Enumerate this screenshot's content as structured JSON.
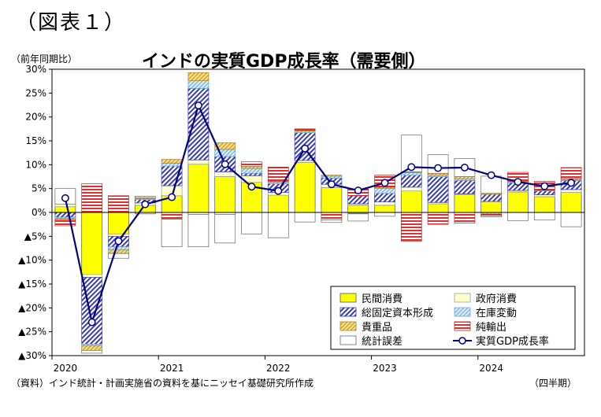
{
  "figure_label": "（図表１）",
  "footer": {
    "source": "（資料）インド統計・計画実施省の資料を基にニッセイ基礎研究所作成",
    "x_unit": "（四半期）"
  },
  "chart_data": {
    "type": "bar",
    "stacked": true,
    "title": "インドの実質GDP成長率（需要側）",
    "ylabel": "（前年同期比）",
    "ylim": [
      -30,
      30
    ],
    "yticks": [
      {
        "v": 30,
        "label": "30%"
      },
      {
        "v": 25,
        "label": "25%"
      },
      {
        "v": 20,
        "label": "20%"
      },
      {
        "v": 15,
        "label": "15%"
      },
      {
        "v": 10,
        "label": "10%"
      },
      {
        "v": 5,
        "label": "5%"
      },
      {
        "v": 0,
        "label": "0%"
      },
      {
        "v": -5,
        "label": "▲5%"
      },
      {
        "v": -10,
        "label": "▲10%"
      },
      {
        "v": -15,
        "label": "▲15%"
      },
      {
        "v": -20,
        "label": "▲20%"
      },
      {
        "v": -25,
        "label": "▲25%"
      },
      {
        "v": -30,
        "label": "▲30%"
      }
    ],
    "year_labels": [
      {
        "label": "2020",
        "index": 0
      },
      {
        "label": "2021",
        "index": 4
      },
      {
        "label": "2022",
        "index": 8
      },
      {
        "label": "2023",
        "index": 12
      },
      {
        "label": "2024",
        "index": 16
      }
    ],
    "n_quarters": 20,
    "legend_position": "bottom-right",
    "series": [
      {
        "name": "民間消費",
        "color": "#ffff00",
        "pattern": "solid",
        "values": [
          1.2,
          -13.0,
          -4.5,
          1.5,
          3.5,
          10.1,
          7.5,
          6.3,
          3.6,
          10.5,
          5.2,
          1.5,
          1.5,
          4.5,
          1.8,
          3.8,
          2.3,
          4.3,
          3.3,
          4.2
        ]
      },
      {
        "name": "政府消費",
        "color": "#ffffcc",
        "pattern": "light",
        "values": [
          0.5,
          -0.6,
          -0.5,
          0.5,
          2.1,
          0.9,
          1.0,
          1.4,
          0.6,
          0.4,
          0.7,
          0.3,
          0.7,
          0.8,
          0.3,
          0.1,
          -0.2,
          0.3,
          0.4,
          0.6
        ]
      },
      {
        "name": "総固定資本形成",
        "color": "#4040b0",
        "pattern": "diag",
        "values": [
          -1.0,
          -14.0,
          -2.2,
          0.7,
          4.1,
          15.0,
          3.2,
          0.5,
          1.8,
          5.8,
          1.3,
          1.7,
          1.8,
          2.5,
          5.4,
          2.8,
          1.5,
          1.6,
          0.8,
          1.9
        ]
      },
      {
        "name": "在庫変動",
        "color": "#aad4f0",
        "pattern": "light-diag",
        "values": [
          -0.3,
          -0.3,
          -0.6,
          0.2,
          0.6,
          1.6,
          1.5,
          1.0,
          0.3,
          0.3,
          0.4,
          -0.2,
          1.0,
          0.5,
          0.3,
          0.3,
          -0.2,
          0.2,
          0.1,
          0.2
        ]
      },
      {
        "name": "貴重品",
        "color": "#f0c040",
        "pattern": "gold-diag",
        "values": [
          -0.2,
          -1.0,
          -0.8,
          0.2,
          0.8,
          1.7,
          1.4,
          0.4,
          0.2,
          0.2,
          0.2,
          -0.1,
          0.3,
          0.2,
          0.4,
          0.5,
          0.2,
          0.1,
          0.1,
          0.2
        ]
      },
      {
        "name": "純輸出",
        "color": "#e03030",
        "pattern": "hstripe",
        "values": [
          -1.3,
          6.0,
          3.5,
          -0.3,
          -1.4,
          -0.4,
          -0.4,
          1.0,
          3.0,
          0.3,
          -1.6,
          1.4,
          2.5,
          -6.0,
          -2.5,
          -2.2,
          -0.5,
          1.9,
          1.8,
          2.3
        ]
      },
      {
        "name": "統計誤差",
        "color": "#ffffff",
        "pattern": "outline",
        "values": [
          3.3,
          -0.6,
          -1.0,
          0.3,
          -5.8,
          -6.8,
          -6.0,
          -4.5,
          -5.3,
          -2.0,
          -0.5,
          -1.5,
          -0.8,
          7.7,
          3.9,
          3.8,
          3.6,
          -1.7,
          -1.6,
          -3.0
        ]
      }
    ],
    "line": {
      "name": "実質GDP成長率",
      "color": "#000080",
      "values": [
        3.0,
        -23.0,
        -6.0,
        1.7,
        3.2,
        22.4,
        10.1,
        5.4,
        4.5,
        13.4,
        5.9,
        4.6,
        6.2,
        9.5,
        9.3,
        9.4,
        7.8,
        6.4,
        5.5,
        6.2
      ]
    },
    "legend": [
      {
        "name": "民間消費",
        "kind": "box",
        "pattern": "solid",
        "color": "#ffff00"
      },
      {
        "name": "政府消費",
        "kind": "box",
        "pattern": "light",
        "color": "#ffffcc"
      },
      {
        "name": "総固定資本形成",
        "kind": "box",
        "pattern": "diag",
        "color": "#4040b0"
      },
      {
        "name": "在庫変動",
        "kind": "box",
        "pattern": "light-diag",
        "color": "#aad4f0"
      },
      {
        "name": "貴重品",
        "kind": "box",
        "pattern": "gold-diag",
        "color": "#f0c040"
      },
      {
        "name": "純輸出",
        "kind": "box",
        "pattern": "hstripe",
        "color": "#e03030"
      },
      {
        "name": "統計誤差",
        "kind": "box",
        "pattern": "outline",
        "color": "#ffffff"
      },
      {
        "name": "実質GDP成長率",
        "kind": "line",
        "color": "#000080"
      }
    ]
  }
}
